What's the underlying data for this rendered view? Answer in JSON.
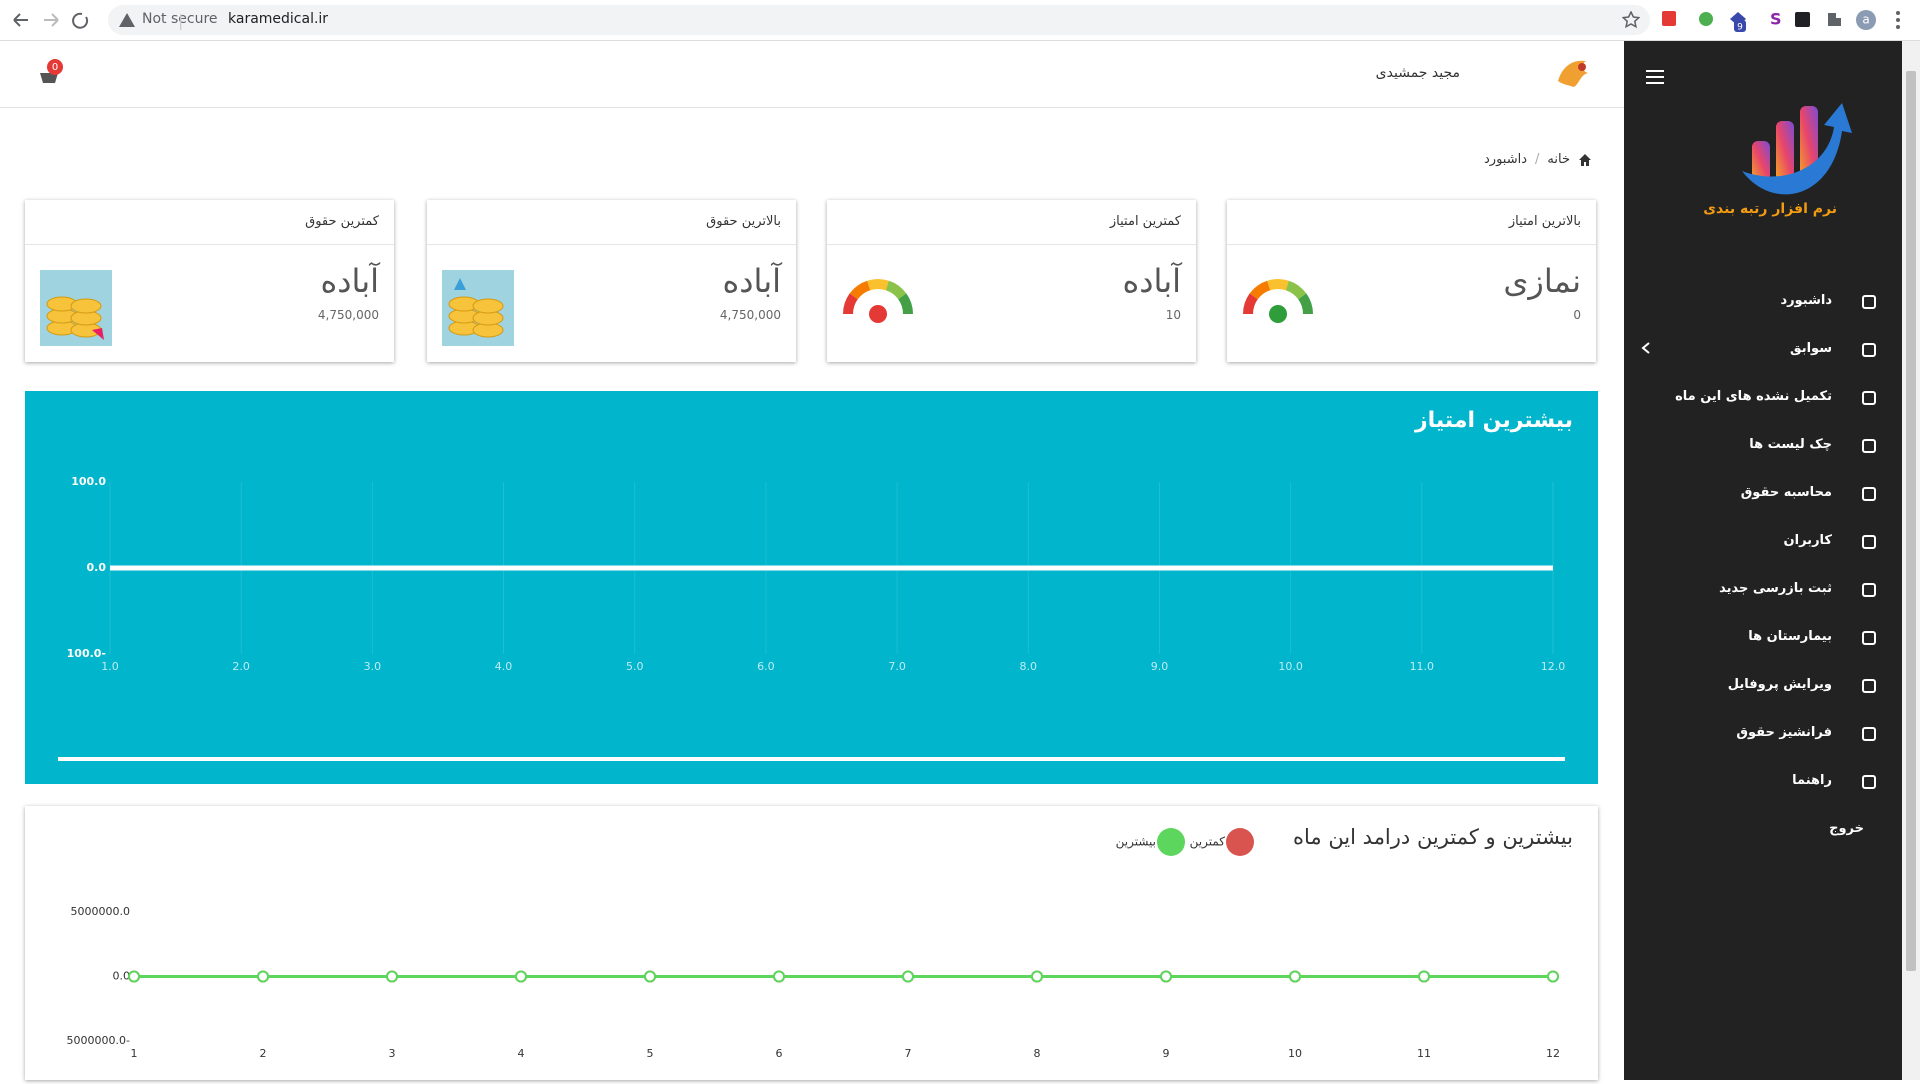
{
  "browser": {
    "security_label": "Not secure",
    "url": "karamedical.ir",
    "extension_badge": "9",
    "profile_initial": "a"
  },
  "header": {
    "user_name": "مجید جمشیدی",
    "cart_count": "0"
  },
  "breadcrumb": [
    "خانه",
    "داشبورد"
  ],
  "cards": [
    {
      "title": "بالاترین امتیاز",
      "name": "نمازی",
      "value": "0"
    },
    {
      "title": "کمترین امتیاز",
      "name": "آباده",
      "value": "10"
    },
    {
      "title": "بالاترین حقوق",
      "name": "آباده",
      "value": "4,750,000"
    },
    {
      "title": "کمترین حقوق",
      "name": "آباده",
      "value": "4,750,000"
    }
  ],
  "chart_data": [
    {
      "type": "line",
      "title": "بیشترین امتیاز",
      "x": [
        1,
        2,
        3,
        4,
        5,
        6,
        7,
        8,
        9,
        10,
        11,
        12
      ],
      "series": [
        {
          "color": "#ffffff",
          "values": [
            0,
            0,
            0,
            0,
            0,
            0,
            0,
            0,
            0,
            0,
            0,
            0
          ]
        }
      ],
      "xlim": [
        1,
        12
      ],
      "xticks": [
        {
          "value": 1,
          "label": "1.0"
        },
        {
          "value": 2,
          "label": "2.0"
        },
        {
          "value": 3,
          "label": "3.0"
        },
        {
          "value": 4,
          "label": "4.0"
        },
        {
          "value": 5,
          "label": "5.0"
        },
        {
          "value": 6,
          "label": "6.0"
        },
        {
          "value": 7,
          "label": "7.0"
        },
        {
          "value": 8,
          "label": "8.0"
        },
        {
          "value": 9,
          "label": "9.0"
        },
        {
          "value": 10,
          "label": "10.0"
        },
        {
          "value": 11,
          "label": "11.0"
        },
        {
          "value": 12,
          "label": "12.0"
        }
      ],
      "ylim": [
        -100,
        100
      ],
      "yticks": [
        {
          "value": 100,
          "label": "100.0"
        },
        {
          "value": 0,
          "label": "0.0"
        },
        {
          "value": -100,
          "label": "100.0-"
        }
      ],
      "grid": true
    },
    {
      "type": "line",
      "title": "بیشترین و کمترین درامد این ماه",
      "x": [
        1,
        2,
        3,
        4,
        5,
        6,
        7,
        8,
        9,
        10,
        11,
        12
      ],
      "series": [
        {
          "name": "کمترین",
          "color": "#d9534f",
          "values": [
            0,
            0,
            0,
            0,
            0,
            0,
            0,
            0,
            0,
            0,
            0,
            0
          ]
        },
        {
          "name": "بیشترین",
          "color": "#5cd65c",
          "values": [
            0,
            0,
            0,
            0,
            0,
            0,
            0,
            0,
            0,
            0,
            0,
            0
          ]
        }
      ],
      "xlim": [
        1,
        12
      ],
      "xticks": [
        1,
        2,
        3,
        4,
        5,
        6,
        7,
        8,
        9,
        10,
        11,
        12
      ],
      "ylim": [
        -5000000,
        5000000
      ],
      "yticks": [
        {
          "value": 5000000,
          "label": "5000000.0"
        },
        {
          "value": 0,
          "label": "0.0"
        },
        {
          "value": -5000000,
          "label": "5000000.0-"
        }
      ],
      "grid": false,
      "markers": true
    }
  ],
  "sidebar": {
    "brand": "نرم افزار رتبه بندی",
    "menu": [
      "داشبورد",
      "سوابق",
      "تکمیل نشده های این ماه",
      "چک لیست ها",
      "محاسبه حقوق",
      "کاربران",
      "ثبت بازرسی جدید",
      "بیمارستان ها",
      "ویرایش پروفایل",
      "فرانشیز حقوق",
      "راهنما",
      "خروج"
    ]
  }
}
